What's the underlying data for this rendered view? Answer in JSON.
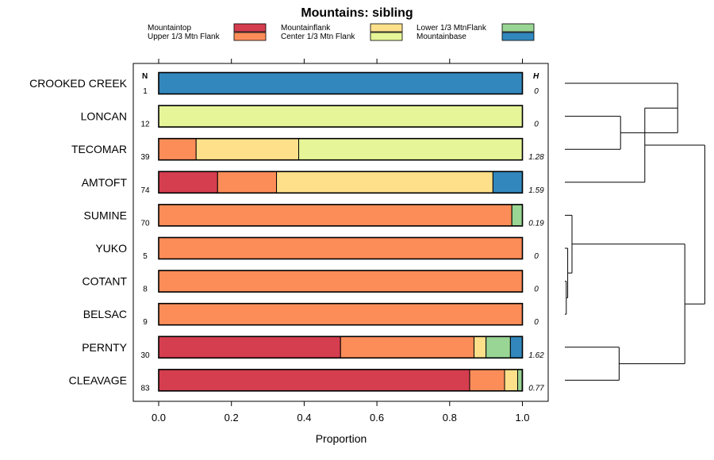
{
  "chart_data": {
    "type": "bar",
    "orientation": "horizontal",
    "stacked": true,
    "title": "Mountains: sibling",
    "xlabel": "Proportion",
    "ylabel": "",
    "xlim": [
      0,
      1
    ],
    "xticks": [
      "0.0",
      "0.2",
      "0.4",
      "0.6",
      "0.8",
      "1.0"
    ],
    "n_header": "N",
    "h_header": "H",
    "legend": {
      "placement": "top-center",
      "entries": [
        {
          "name": "Mountaintop",
          "color": "#d53e4f"
        },
        {
          "name": "Upper 1/3 Mtn Flank",
          "color": "#fc8d59"
        },
        {
          "name": "Mountainflank",
          "color": "#fee08b"
        },
        {
          "name": "Center 1/3 Mtn Flank",
          "color": "#e6f598"
        },
        {
          "name": "Lower 1/3 MtnFlank",
          "color": "#99d594"
        },
        {
          "name": "Mountainbase",
          "color": "#3288bd"
        }
      ]
    },
    "series_order": [
      "Mountaintop",
      "Upper 1/3 Mtn Flank",
      "Mountainflank",
      "Center 1/3 Mtn Flank",
      "Lower 1/3 MtnFlank",
      "Mountainbase"
    ],
    "categories": [
      "CROOKED CREEK",
      "LONCAN",
      "TECOMAR",
      "AMTOFT",
      "SUMINE",
      "YUKO",
      "COTANT",
      "BELSAC",
      "PERNTY",
      "CLEAVAGE"
    ],
    "n_values": [
      "1",
      "12",
      "39",
      "74",
      "70",
      "5",
      "8",
      "9",
      "30",
      "83"
    ],
    "h_values": [
      "0",
      "0",
      "1.28",
      "1.59",
      "0.19",
      "0",
      "0",
      "0",
      "1.62",
      "0.77"
    ],
    "proportions": [
      [
        0,
        0,
        0,
        0,
        0,
        1
      ],
      [
        0,
        0,
        0,
        1,
        0,
        0
      ],
      [
        0,
        0.103,
        0.282,
        0.615,
        0,
        0
      ],
      [
        0.162,
        0.162,
        0.595,
        0,
        0,
        0.081
      ],
      [
        0,
        0.971,
        0,
        0,
        0.029,
        0
      ],
      [
        0,
        1,
        0,
        0,
        0,
        0
      ],
      [
        0,
        1,
        0,
        0,
        0,
        0
      ],
      [
        0,
        1,
        0,
        0,
        0,
        0
      ],
      [
        0.5,
        0.367,
        0.033,
        0,
        0.067,
        0.033
      ],
      [
        0.855,
        0.096,
        0.036,
        0,
        0.012,
        0
      ]
    ],
    "dendrogram": {
      "note": "cluster tree drawn to the right of the bars; merges listed as pairs of row indices/clusters with relative height (0-1)",
      "merges": [
        {
          "a": "r6",
          "b": "r7",
          "height": 0.01,
          "id": "c1"
        },
        {
          "a": "r5",
          "b": "c1",
          "height": 0.02,
          "id": "c2"
        },
        {
          "a": "r4",
          "b": "c2",
          "height": 0.05,
          "id": "c3"
        },
        {
          "a": "r1",
          "b": "r2",
          "height": 0.39,
          "id": "c4"
        },
        {
          "a": "r8",
          "b": "r9",
          "height": 0.38,
          "id": "c5"
        },
        {
          "a": "r0",
          "b": "c4",
          "height": 0.79,
          "id": "c6"
        },
        {
          "a": "r3",
          "b": "c6",
          "height": 0.56,
          "id": "c7"
        },
        {
          "a": "c3",
          "b": "c5",
          "height": 0.84,
          "id": "c8"
        },
        {
          "a": "c7",
          "b": "c8",
          "height": 0.98,
          "id": "c9"
        }
      ]
    }
  }
}
